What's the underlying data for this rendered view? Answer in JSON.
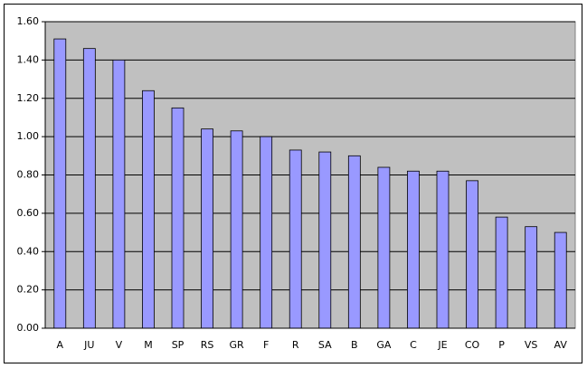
{
  "chart_data": {
    "type": "bar",
    "categories": [
      "A",
      "JU",
      "V",
      "M",
      "SP",
      "RS",
      "GR",
      "F",
      "R",
      "SA",
      "B",
      "GA",
      "C",
      "JE",
      "CO",
      "P",
      "VS",
      "AV"
    ],
    "values": [
      1.51,
      1.46,
      1.4,
      1.24,
      1.15,
      1.04,
      1.03,
      1.0,
      0.93,
      0.92,
      0.9,
      0.84,
      0.82,
      0.82,
      0.77,
      0.58,
      0.53,
      0.5
    ],
    "color": "#9999ff",
    "ylim": [
      0,
      1.6
    ],
    "yticks": [
      {
        "value": 0,
        "label": "0.00"
      },
      {
        "value": 0.2,
        "label": "0.20"
      },
      {
        "value": 0.4,
        "label": "0.40"
      },
      {
        "value": 0.6,
        "label": "0.60"
      },
      {
        "value": 0.8,
        "label": "0.80"
      },
      {
        "value": 1,
        "label": "1.00"
      },
      {
        "value": 1.2,
        "label": "1.20"
      },
      {
        "value": 1.4,
        "label": "1.40"
      },
      {
        "value": 1.6,
        "label": "1.60"
      }
    ],
    "grid": true
  }
}
